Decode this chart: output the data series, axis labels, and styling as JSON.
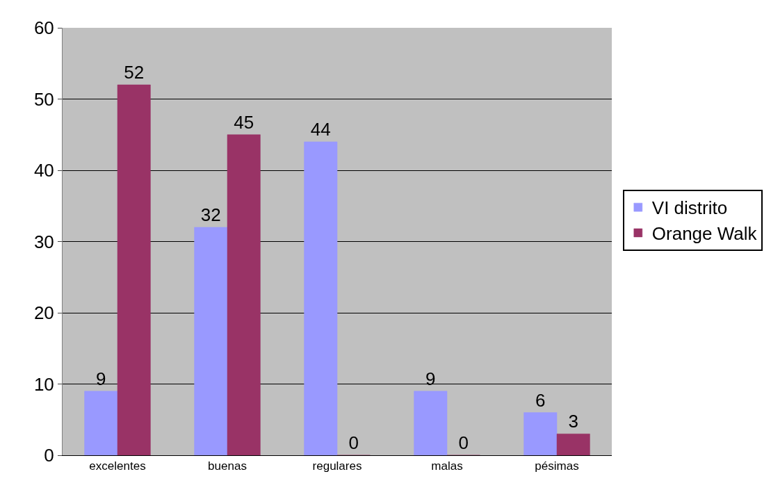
{
  "chart_data": {
    "type": "bar",
    "categories": [
      "excelentes",
      "buenas",
      "regulares",
      "malas",
      "pésimas"
    ],
    "series": [
      {
        "name": "VI distrito",
        "color": "#9999ff",
        "values": [
          9,
          32,
          44,
          9,
          6
        ]
      },
      {
        "name": "Orange Walk",
        "color": "#993366",
        "values": [
          52,
          45,
          0,
          0,
          3
        ]
      }
    ],
    "ylim": [
      0,
      60
    ],
    "yticks": [
      0,
      10,
      20,
      30,
      40,
      50,
      60
    ],
    "grid": "y",
    "legend": "right",
    "data_labels": true
  }
}
